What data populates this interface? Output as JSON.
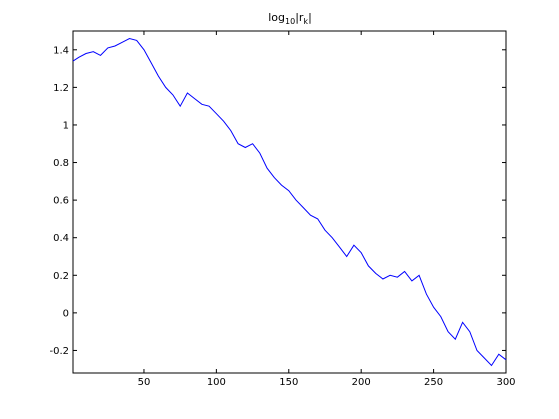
{
  "chart_data": {
    "type": "line",
    "title": {
      "base": "log",
      "base_subscript": "10",
      "bar_open": "|r",
      "var_subscript": "k",
      "bar_close": "|"
    },
    "xlabel": "",
    "ylabel": "",
    "xlim": [
      1,
      300
    ],
    "ylim": [
      -0.32,
      1.5
    ],
    "xticks": [
      50,
      100,
      150,
      200,
      250,
      300
    ],
    "yticks": [
      -0.2,
      0,
      0.2,
      0.4,
      0.6,
      0.8,
      1,
      1.2,
      1.4
    ],
    "ytick_labels": [
      "-0.2",
      "0",
      "0.2",
      "0.4",
      "0.6",
      "0.8",
      "1",
      "1.2",
      "1.4"
    ],
    "grid": false,
    "series": [
      {
        "color": "#0000ff",
        "x": [
          1,
          5,
          10,
          15,
          20,
          25,
          30,
          35,
          40,
          45,
          50,
          55,
          60,
          65,
          70,
          75,
          80,
          85,
          90,
          95,
          100,
          105,
          110,
          115,
          120,
          125,
          130,
          135,
          140,
          145,
          150,
          155,
          160,
          165,
          170,
          175,
          180,
          185,
          190,
          195,
          200,
          205,
          210,
          215,
          220,
          225,
          230,
          235,
          240,
          245,
          250,
          255,
          260,
          265,
          270,
          275,
          280,
          285,
          290,
          295,
          300
        ],
        "y": [
          1.34,
          1.36,
          1.38,
          1.39,
          1.37,
          1.41,
          1.42,
          1.44,
          1.46,
          1.45,
          1.4,
          1.33,
          1.26,
          1.2,
          1.16,
          1.1,
          1.17,
          1.14,
          1.11,
          1.1,
          1.06,
          1.02,
          0.97,
          0.9,
          0.88,
          0.9,
          0.85,
          0.77,
          0.72,
          0.68,
          0.65,
          0.6,
          0.56,
          0.52,
          0.5,
          0.44,
          0.4,
          0.35,
          0.3,
          0.36,
          0.32,
          0.25,
          0.21,
          0.18,
          0.2,
          0.19,
          0.22,
          0.17,
          0.2,
          0.1,
          0.03,
          -0.02,
          -0.1,
          -0.14,
          -0.05,
          -0.1,
          -0.2,
          -0.24,
          -0.28,
          -0.22,
          -0.25
        ]
      }
    ]
  }
}
